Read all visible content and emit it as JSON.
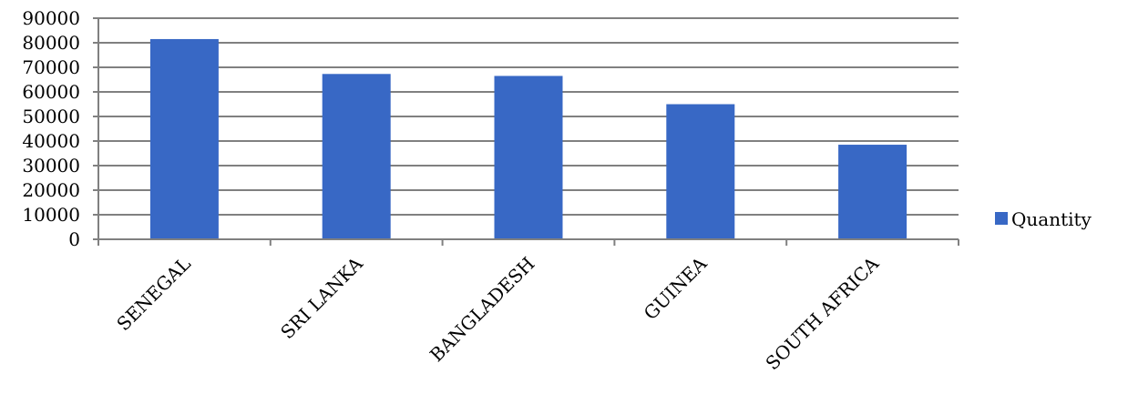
{
  "chart_data": {
    "type": "bar",
    "categories": [
      "SENEGAL",
      "SRI LANKA",
      "BANGLADESH",
      "GUINEA",
      "SOUTH AFRICA"
    ],
    "series": [
      {
        "name": "Quantity",
        "values": [
          81500,
          67300,
          66500,
          55000,
          38500
        ],
        "color": "#3868C5"
      }
    ],
    "yticks": [
      "0",
      "10000",
      "20000",
      "30000",
      "40000",
      "50000",
      "60000",
      "70000",
      "80000",
      "90000"
    ],
    "ylim": [
      0,
      90000
    ],
    "grid": true,
    "legend_position": "right",
    "gridline_color": "#808080",
    "axis_color": "#808080"
  }
}
